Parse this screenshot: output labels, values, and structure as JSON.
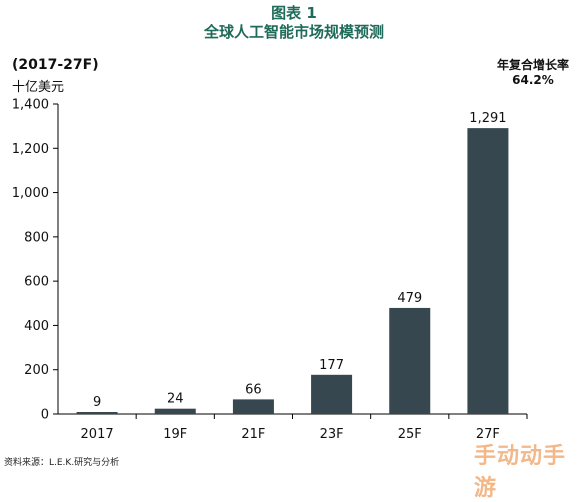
{
  "figure_label": "图表 1",
  "title": "全球人工智能市场规模预测",
  "period_label": "(2017-27F)",
  "unit_label": "十亿美元",
  "cagr": {
    "label": "年复合增长率",
    "value": "64.2%"
  },
  "source": "资料来源：L.E.K.研究与分析",
  "watermark": "手动动手游",
  "colors": {
    "bar": "#37474f",
    "title": "#1f6b5a",
    "watermark": "#f2b88a"
  },
  "chart_data": {
    "type": "bar",
    "title": "全球人工智能市场规模预测",
    "xlabel": "",
    "ylabel": "十亿美元",
    "categories": [
      "2017",
      "19F",
      "21F",
      "23F",
      "25F",
      "27F"
    ],
    "values": [
      9,
      24,
      66,
      177,
      479,
      1291
    ],
    "value_labels": [
      "9",
      "24",
      "66",
      "177",
      "479",
      "1,291"
    ],
    "ylim": [
      0,
      1400
    ],
    "yticks": [
      0,
      200,
      400,
      600,
      800,
      1000,
      1200,
      1400
    ],
    "ytick_labels": [
      "0",
      "200",
      "400",
      "600",
      "800",
      "1,000",
      "1,200",
      "1,400"
    ],
    "grid": false,
    "legend": "none"
  }
}
